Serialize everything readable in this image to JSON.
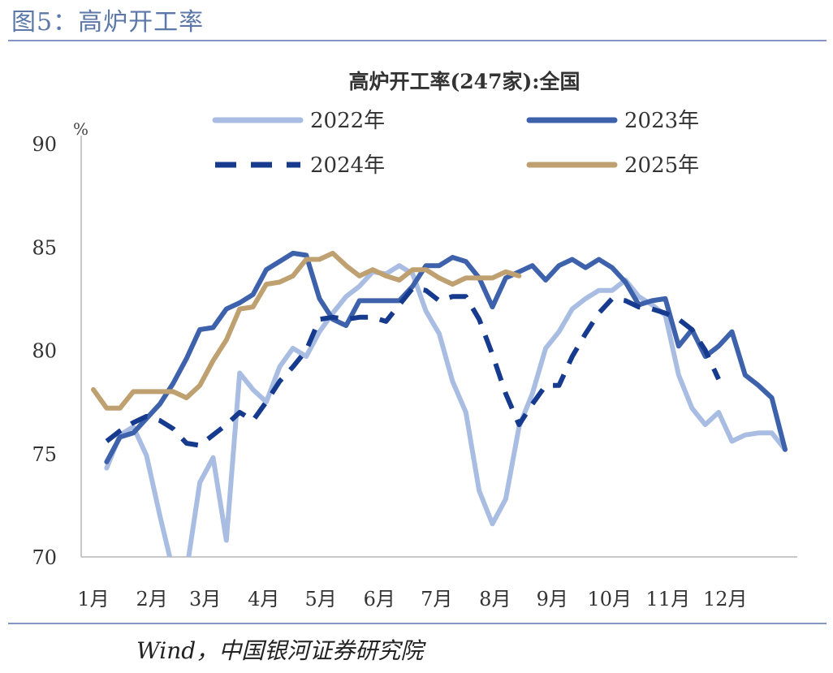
{
  "figure_title": "图5：高炉开工率",
  "source": "Wind，中国银河证券研究院",
  "chart_data": {
    "type": "line",
    "title": "高炉开工率(247家):全国",
    "unit": "%",
    "ylim": [
      70,
      90
    ],
    "yticks": [
      70,
      75,
      80,
      85,
      90
    ],
    "xlim": [
      0,
      52
    ],
    "month_ticks": [
      {
        "label": "1月",
        "x": 0
      },
      {
        "label": "2月",
        "x": 4.4
      },
      {
        "label": "3月",
        "x": 8.4
      },
      {
        "label": "4月",
        "x": 12.8
      },
      {
        "label": "5月",
        "x": 17.1
      },
      {
        "label": "6月",
        "x": 21.5
      },
      {
        "label": "7月",
        "x": 25.8
      },
      {
        "label": "8月",
        "x": 30.2
      },
      {
        "label": "9月",
        "x": 34.5
      },
      {
        "label": "10月",
        "x": 38.8
      },
      {
        "label": "11月",
        "x": 43.2
      },
      {
        "label": "12月",
        "x": 47.5
      }
    ],
    "grid": false,
    "legend_position": "top",
    "series": [
      {
        "name": "2022年",
        "color": "#a9bde3",
        "dash": false,
        "start": 1,
        "values": [
          74.3,
          75.9,
          76.3,
          74.9,
          72.0,
          69.3,
          69.3,
          73.6,
          74.8,
          70.8,
          78.9,
          78.1,
          77.5,
          79.2,
          80.1,
          79.7,
          80.9,
          81.8,
          82.6,
          83.1,
          83.8,
          83.7,
          84.1,
          83.7,
          81.9,
          80.8,
          78.5,
          77.0,
          73.2,
          71.6,
          72.8,
          76.3,
          77.9,
          80.1,
          80.9,
          82.0,
          82.5,
          82.9,
          82.9,
          83.4,
          82.6,
          82.2,
          81.7,
          78.8,
          77.2,
          76.4,
          77.0,
          75.6,
          75.9,
          76.0,
          76.0,
          75.2
        ]
      },
      {
        "name": "2023年",
        "color": "#3d62ab",
        "dash": false,
        "start": 1,
        "values": [
          74.6,
          75.8,
          76.0,
          76.7,
          77.4,
          78.4,
          79.6,
          81.0,
          81.1,
          82.0,
          82.3,
          82.7,
          83.9,
          84.3,
          84.7,
          84.6,
          82.5,
          81.5,
          81.2,
          82.4,
          82.4,
          82.4,
          82.4,
          83.1,
          84.1,
          84.1,
          84.5,
          84.3,
          83.5,
          82.1,
          83.5,
          83.8,
          84.1,
          83.4,
          84.1,
          84.4,
          84.0,
          84.4,
          84.0,
          83.3,
          82.2,
          82.4,
          82.5,
          80.2,
          81.0,
          79.7,
          80.2,
          80.9,
          78.8,
          78.3,
          77.7,
          75.2
        ]
      },
      {
        "name": "2024年",
        "color": "#163a8e",
        "dash": true,
        "start": 1,
        "values": [
          75.6,
          76.1,
          76.5,
          76.8,
          76.6,
          76.2,
          75.5,
          75.4,
          75.9,
          76.4,
          77.0,
          76.6,
          77.5,
          78.5,
          79.2,
          80.0,
          81.5,
          81.6,
          81.5,
          81.6,
          81.6,
          81.4,
          82.2,
          83.0,
          82.9,
          82.4,
          82.6,
          82.6,
          81.5,
          79.8,
          77.9,
          76.4,
          77.4,
          78.3,
          78.3,
          79.7,
          80.8,
          81.8,
          82.5,
          82.4,
          82.1,
          82.0,
          81.8,
          81.5,
          81.0,
          80.0,
          78.6
        ]
      },
      {
        "name": "2025年",
        "color": "#bfa071",
        "dash": false,
        "start": 0,
        "values": [
          78.1,
          77.2,
          77.2,
          78.0,
          78.0,
          78.0,
          78.0,
          77.7,
          78.3,
          79.5,
          80.5,
          82.0,
          82.1,
          83.2,
          83.3,
          83.6,
          84.4,
          84.4,
          84.7,
          84.1,
          83.6,
          83.9,
          83.6,
          83.4,
          83.9,
          83.9,
          83.5,
          83.2,
          83.5,
          83.5,
          83.5,
          83.8,
          83.6
        ]
      }
    ]
  }
}
